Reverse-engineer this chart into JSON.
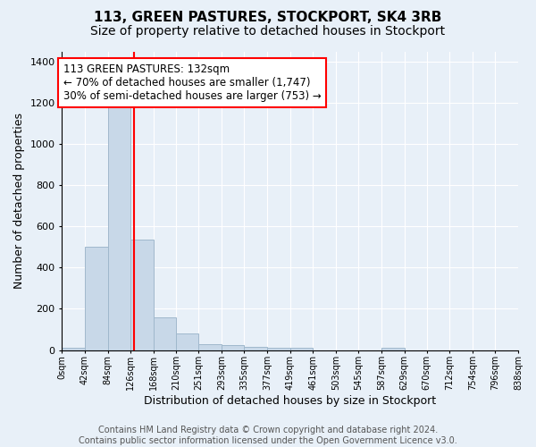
{
  "title": "113, GREEN PASTURES, STOCKPORT, SK4 3RB",
  "subtitle": "Size of property relative to detached houses in Stockport",
  "xlabel": "Distribution of detached houses by size in Stockport",
  "ylabel": "Number of detached properties",
  "bin_edges": [
    0,
    42,
    84,
    126,
    168,
    210,
    251,
    293,
    335,
    377,
    419,
    461,
    503,
    545,
    587,
    629,
    670,
    712,
    754,
    796,
    838
  ],
  "bar_heights": [
    10,
    500,
    1220,
    535,
    160,
    80,
    30,
    25,
    15,
    10,
    10,
    0,
    0,
    0,
    10,
    0,
    0,
    0,
    0,
    0
  ],
  "bar_color": "#c8d8e8",
  "bar_edgecolor": "#a0b8cc",
  "property_line_x": 132,
  "property_line_color": "red",
  "annotation_text": "113 GREEN PASTURES: 132sqm\n← 70% of detached houses are smaller (1,747)\n30% of semi-detached houses are larger (753) →",
  "annotation_box_color": "white",
  "annotation_box_edgecolor": "red",
  "ylim": [
    0,
    1450
  ],
  "yticks": [
    0,
    200,
    400,
    600,
    800,
    1000,
    1200,
    1400
  ],
  "tick_labels": [
    "0sqm",
    "42sqm",
    "84sqm",
    "126sqm",
    "168sqm",
    "210sqm",
    "251sqm",
    "293sqm",
    "335sqm",
    "377sqm",
    "419sqm",
    "461sqm",
    "503sqm",
    "545sqm",
    "587sqm",
    "629sqm",
    "670sqm",
    "712sqm",
    "754sqm",
    "796sqm",
    "838sqm"
  ],
  "background_color": "#e8f0f8",
  "grid_color": "white",
  "footer_text": "Contains HM Land Registry data © Crown copyright and database right 2024.\nContains public sector information licensed under the Open Government Licence v3.0.",
  "title_fontsize": 11,
  "subtitle_fontsize": 10,
  "xlabel_fontsize": 9,
  "ylabel_fontsize": 9,
  "annotation_fontsize": 8.5,
  "footer_fontsize": 7
}
